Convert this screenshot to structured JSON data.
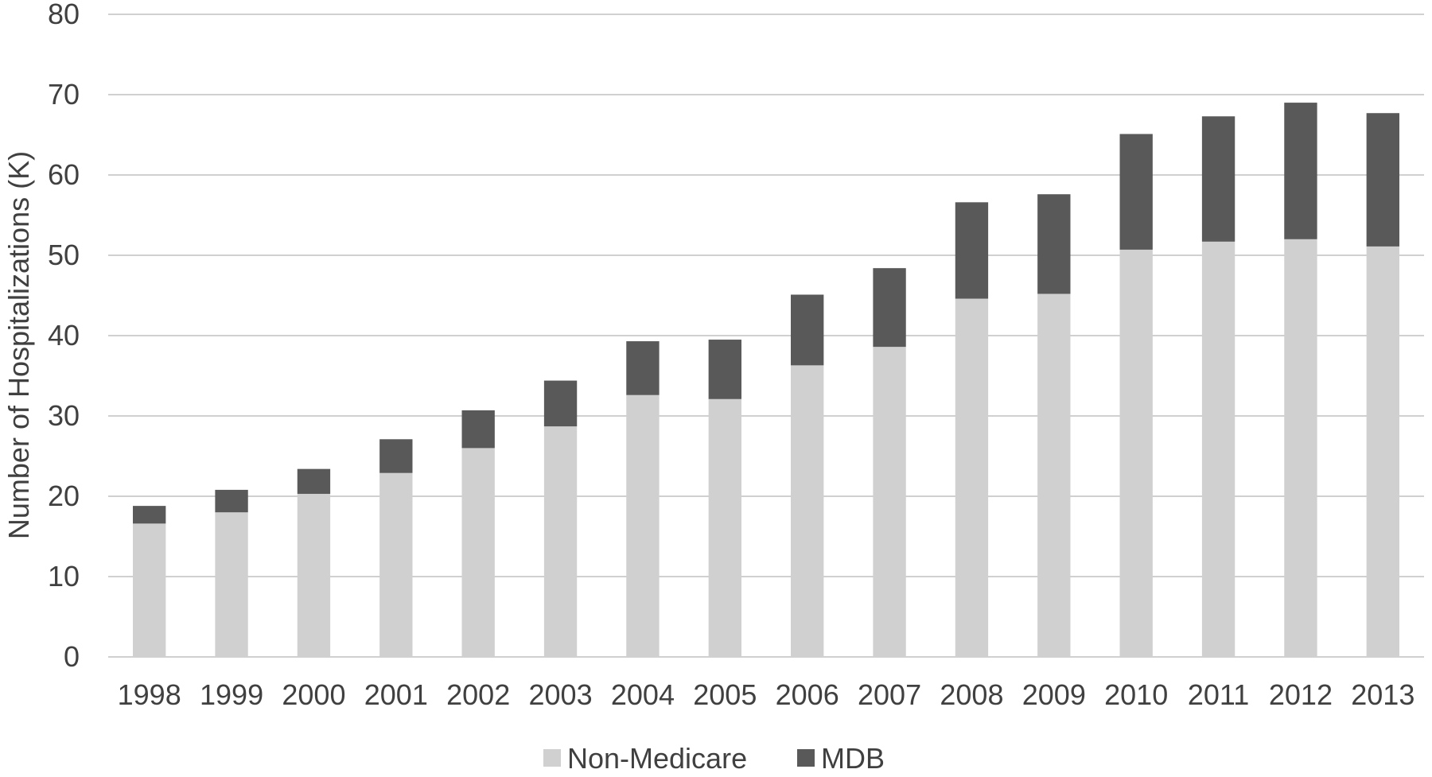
{
  "chart_data": {
    "type": "bar",
    "stacked": true,
    "categories": [
      "1998",
      "1999",
      "2000",
      "2001",
      "2002",
      "2003",
      "2004",
      "2005",
      "2006",
      "2007",
      "2008",
      "2009",
      "2010",
      "2011",
      "2012",
      "2013"
    ],
    "series": [
      {
        "name": "Non-Medicare",
        "color": "#d0d0d0",
        "values": [
          16.6,
          18.0,
          20.3,
          22.9,
          26.0,
          28.7,
          32.6,
          32.1,
          36.3,
          38.6,
          44.6,
          45.2,
          50.7,
          51.7,
          52.0,
          51.1
        ]
      },
      {
        "name": "MDB",
        "color": "#595959",
        "values": [
          2.2,
          2.8,
          3.1,
          4.2,
          4.7,
          5.7,
          6.7,
          7.4,
          8.8,
          9.8,
          12.0,
          12.4,
          14.4,
          15.6,
          17.0,
          16.6
        ]
      }
    ],
    "ylabel": "Number of Hospitalizations (K)",
    "xlabel": "",
    "ylim": [
      0,
      80
    ],
    "yticks": [
      0,
      10,
      20,
      30,
      40,
      50,
      60,
      70,
      80
    ],
    "grid": true,
    "legend_position": "bottom"
  }
}
